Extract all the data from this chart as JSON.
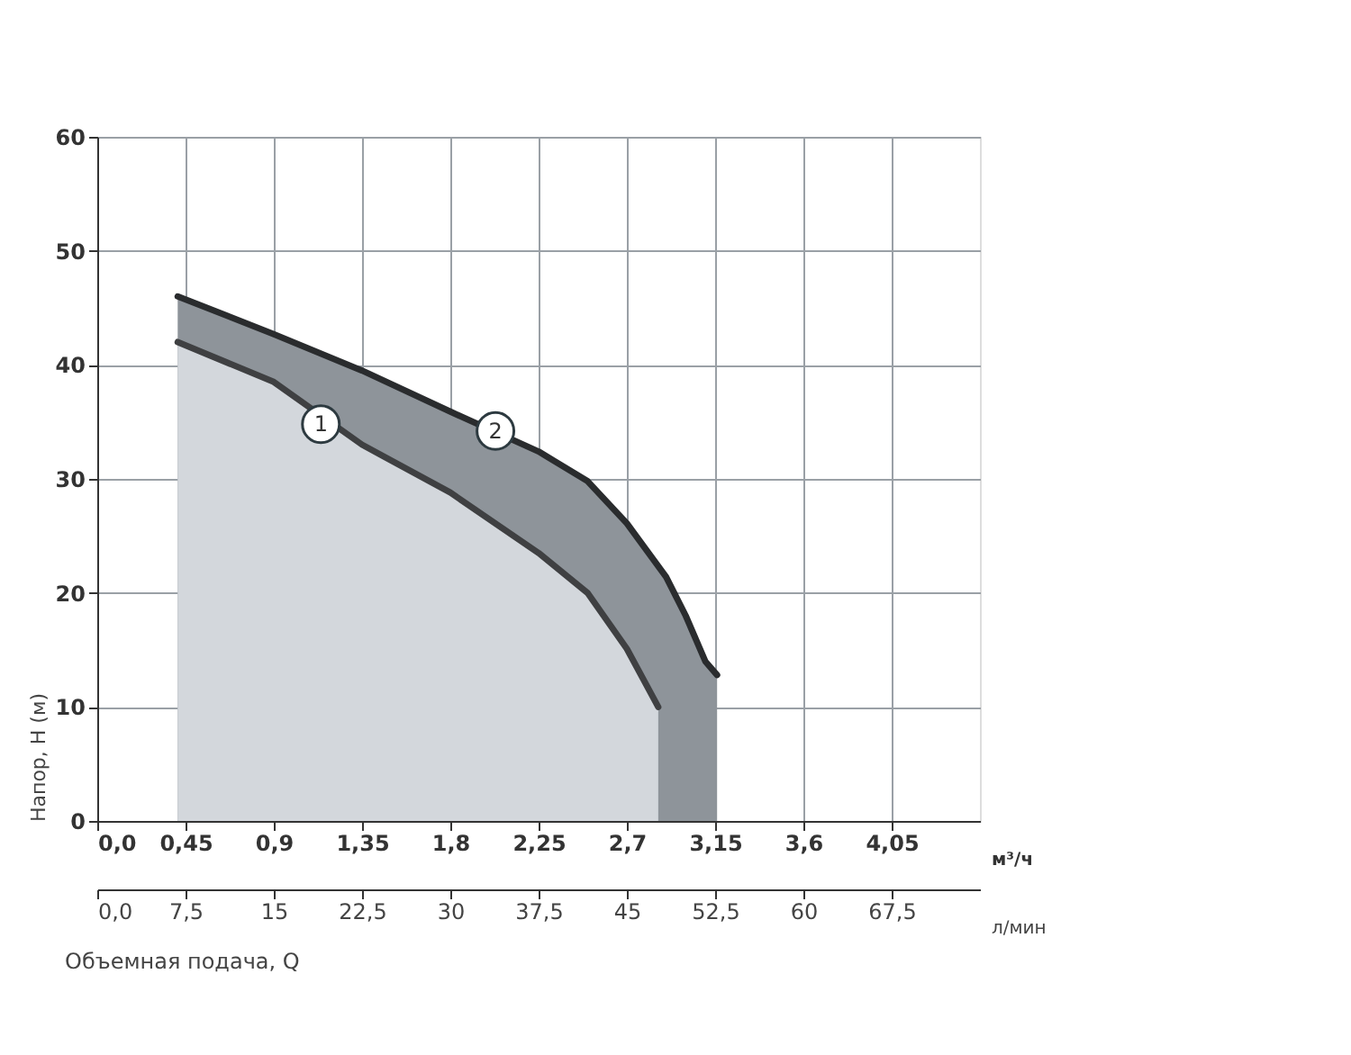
{
  "chart_data": {
    "type": "area",
    "xlabel": "м³/ч",
    "x2label": "л/мин",
    "ylabel": "Напор, H (м)",
    "xlim": [
      0,
      4.5
    ],
    "xticks": [
      {
        "value": 0,
        "label": "0,0"
      },
      {
        "value": 0.45,
        "label": "0,45"
      },
      {
        "value": 0.9,
        "label": "0,9"
      },
      {
        "value": 1.35,
        "label": "1,35"
      },
      {
        "value": 1.8,
        "label": "1,8"
      },
      {
        "value": 2.25,
        "label": "2,25"
      },
      {
        "value": 2.7,
        "label": "2,7"
      },
      {
        "value": 3.15,
        "label": "3,15"
      },
      {
        "value": 3.6,
        "label": "3,6"
      },
      {
        "value": 4.05,
        "label": "4,05"
      }
    ],
    "x2lim": [
      0,
      75
    ],
    "x2ticks": [
      {
        "value": 0,
        "label": "0,0"
      },
      {
        "value": 7.5,
        "label": "7,5"
      },
      15,
      {
        "value": 22.5,
        "label": "22,5"
      },
      30,
      {
        "value": 37.5,
        "label": "37,5"
      },
      45,
      {
        "value": 52.5,
        "label": "52,5"
      },
      60,
      {
        "value": 67.5,
        "label": "67,5"
      }
    ],
    "ylim": [
      0,
      60
    ],
    "yticks": [
      0,
      10,
      20,
      30,
      40,
      50,
      60
    ],
    "grid": true,
    "series": [
      {
        "color": "#d3d7dc",
        "x": [
          0.41,
          0.9,
          1.35,
          1.8,
          2.25,
          2.5,
          2.7,
          2.86
        ],
        "values": [
          42,
          38.5,
          33.0,
          28.8,
          23.5,
          20.0,
          15.1,
          10
        ]
      },
      {
        "color": "#8e949a",
        "x": [
          0.41,
          0.9,
          1.35,
          1.8,
          2.25,
          2.5,
          2.7,
          2.9,
          3.0,
          3.1,
          3.16
        ],
        "values": [
          46,
          42.7,
          39.5,
          35.9,
          32.4,
          29.8,
          26.1,
          21.4,
          18,
          14,
          12.8
        ]
      }
    ],
    "annotations": [
      {
        "text": "1",
        "x": 1.14,
        "y": 34.8
      },
      {
        "text": "2",
        "x": 2.03,
        "y": 34.2
      },
      "Объемная подача, Q"
    ]
  }
}
